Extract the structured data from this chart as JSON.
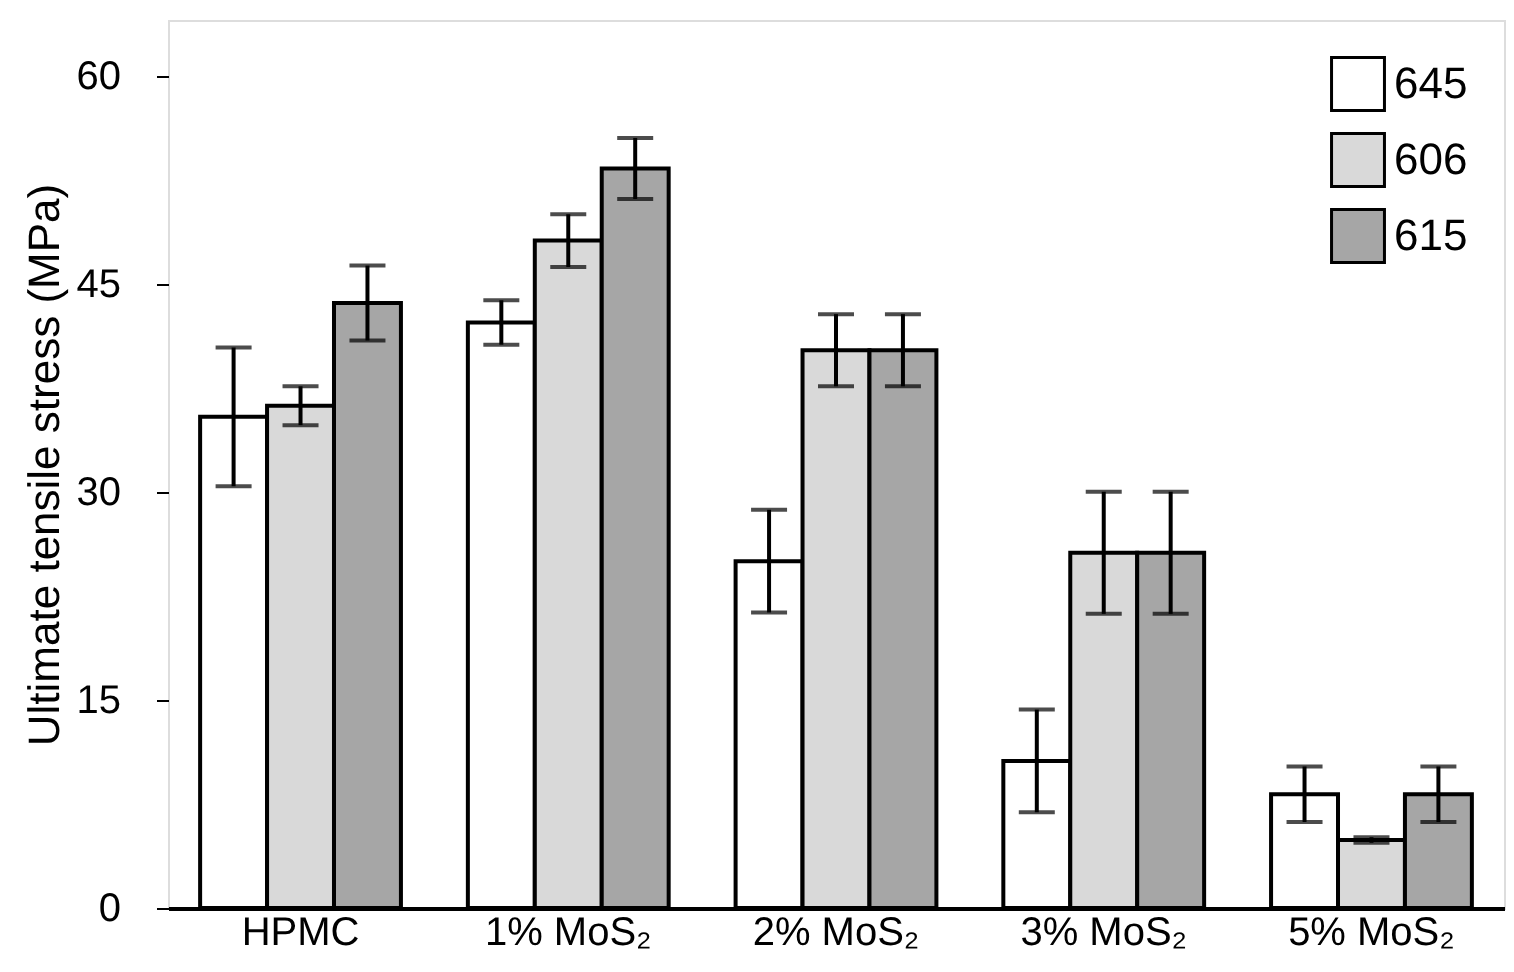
{
  "chart_data": {
    "type": "bar",
    "ylabel": "Ultimate tensile stress (MPa)",
    "categories": [
      "HPMC",
      "1% MoS₂",
      "2% MoS₂",
      "3% MoS₂",
      "5% MoS₂"
    ],
    "series": [
      {
        "name": "645",
        "color": "#ffffff",
        "values": [
          35.4,
          42.2,
          25.0,
          10.6,
          8.2
        ],
        "errors": [
          5.0,
          1.6,
          3.7,
          3.7,
          2.0
        ]
      },
      {
        "name": "606",
        "color": "#d9d9d9",
        "values": [
          36.2,
          48.1,
          40.2,
          25.6,
          4.9
        ],
        "errors": [
          1.4,
          1.9,
          2.6,
          4.4,
          0.2
        ]
      },
      {
        "name": "615",
        "color": "#a6a6a6",
        "values": [
          43.6,
          53.3,
          40.2,
          25.6,
          8.2
        ],
        "errors": [
          2.7,
          2.2,
          2.6,
          4.4,
          2.0
        ]
      }
    ],
    "ylim": [
      0,
      64
    ],
    "yticks": [
      0,
      15,
      30,
      45,
      60
    ],
    "grid": false,
    "legend": "top right"
  }
}
